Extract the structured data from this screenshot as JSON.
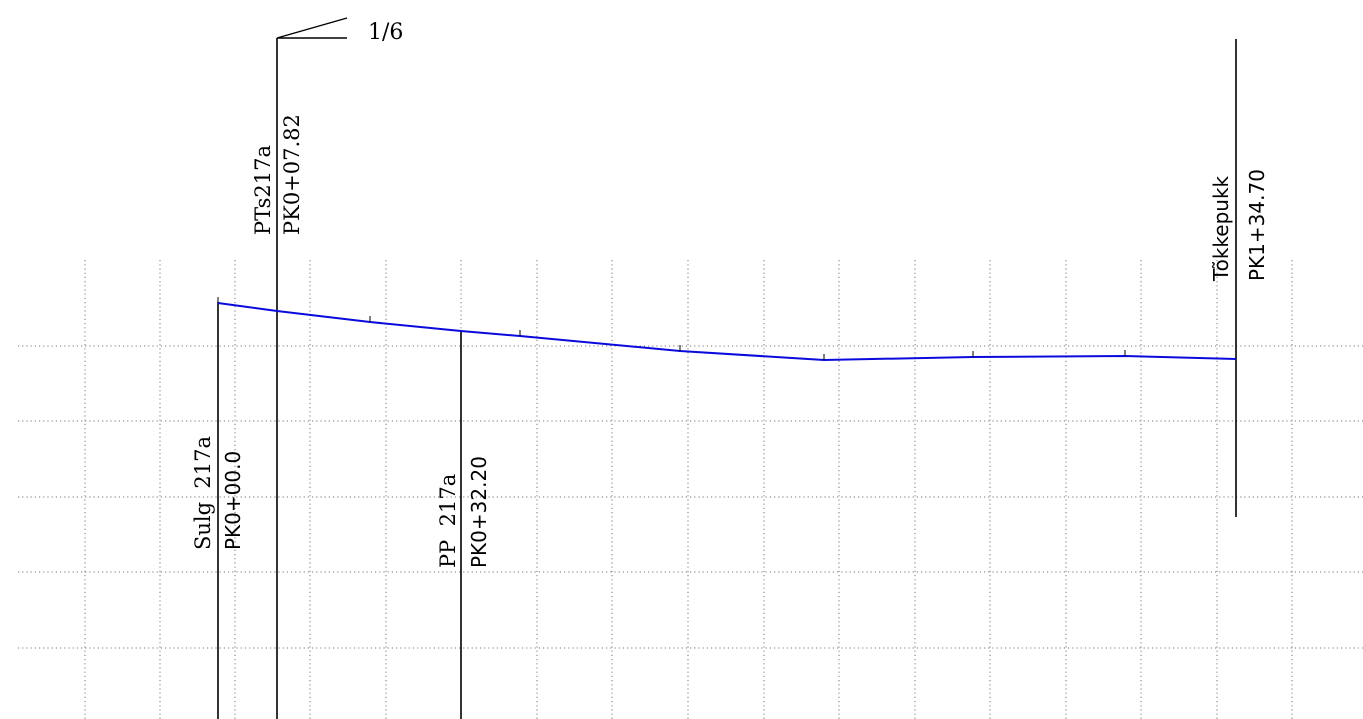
{
  "slope_marker": {
    "text": "1/6"
  },
  "stations": [
    {
      "id": "sulg",
      "name": "Sulg  217a",
      "chainage": "PK0+00.0",
      "font": "serif"
    },
    {
      "id": "pts",
      "name": "PTs217a",
      "chainage": "PK0+07.82",
      "font": "serif"
    },
    {
      "id": "pp",
      "name": "PP  217a",
      "chainage": "PK0+32.20",
      "font": "serif"
    },
    {
      "id": "tokkepukk",
      "name": "Tõkkepukk",
      "chainage": "PK1+34.70",
      "font": "sans"
    }
  ],
  "colors": {
    "profile": "#0a0adc",
    "grid": "#777777",
    "lines": "#000000"
  }
}
